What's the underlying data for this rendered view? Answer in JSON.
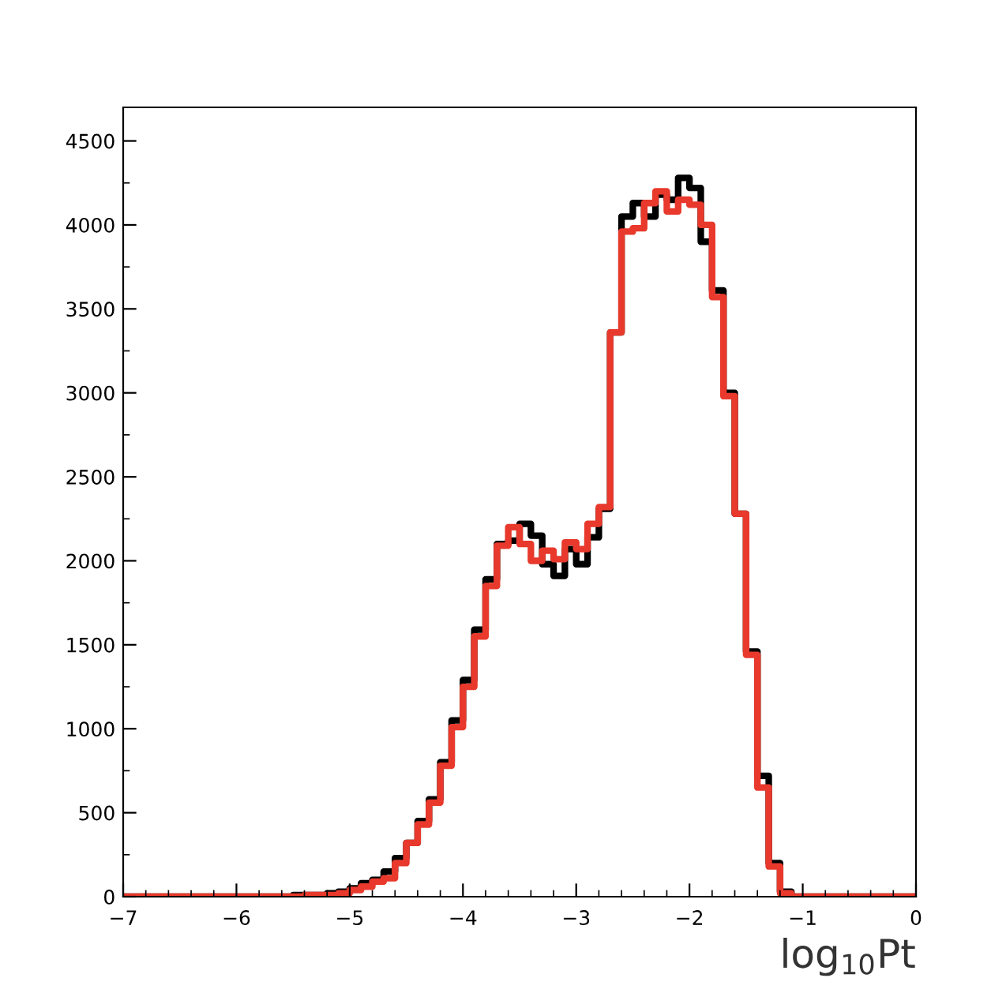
{
  "chart_data": {
    "type": "histogram",
    "xlabel": "log$_{10}$Pt",
    "bins": [
      -7.0,
      -6.9,
      -6.8,
      -6.7,
      -6.6,
      -6.5,
      -6.4,
      -6.3,
      -6.2,
      -6.1,
      -6.0,
      -5.9,
      -5.8,
      -5.7,
      -5.6,
      -5.5,
      -5.4,
      -5.3,
      -5.2,
      -5.1,
      -5.0,
      -4.9,
      -4.8,
      -4.7,
      -4.6,
      -4.5,
      -4.4,
      -4.3,
      -4.2,
      -4.1,
      -4.0,
      -3.9,
      -3.8,
      -3.7,
      -3.6,
      -3.5,
      -3.4,
      -3.3,
      -3.2,
      -3.1,
      -3.0,
      -2.9,
      -2.8,
      -2.7,
      -2.6,
      -2.5,
      -2.4,
      -2.3,
      -2.2,
      -2.1,
      -2.0,
      -1.9,
      -1.8,
      -1.7,
      -1.6,
      -1.5,
      -1.4,
      -1.3,
      -1.2,
      -1.1,
      -1.0,
      -0.9,
      -0.8,
      -0.7,
      -0.6,
      -0.5,
      -0.4,
      -0.3,
      -0.2,
      -0.1,
      0.0
    ],
    "series": [
      {
        "color": "#000000",
        "values": [
          0,
          0,
          0,
          0,
          0,
          0,
          0,
          0,
          0,
          0,
          0,
          0,
          0,
          0,
          0,
          10,
          10,
          10,
          20,
          30,
          50,
          80,
          100,
          150,
          230,
          320,
          450,
          580,
          800,
          1050,
          1290,
          1590,
          1890,
          2100,
          2120,
          2220,
          2150,
          1980,
          1910,
          2070,
          1980,
          2140,
          2310,
          3360,
          4050,
          4130,
          4050,
          4180,
          4150,
          4280,
          4220,
          3900,
          3610,
          3000,
          2280,
          1460,
          720,
          200,
          30,
          0,
          0,
          0,
          0,
          0,
          0,
          0,
          0,
          0,
          0,
          0
        ]
      },
      {
        "color": "#e8392c",
        "values": [
          0,
          0,
          0,
          0,
          0,
          0,
          0,
          0,
          0,
          0,
          0,
          0,
          0,
          0,
          0,
          0,
          10,
          10,
          10,
          20,
          40,
          60,
          90,
          110,
          200,
          320,
          430,
          560,
          780,
          1010,
          1250,
          1550,
          1850,
          2090,
          2200,
          2100,
          2000,
          2060,
          2010,
          2110,
          2070,
          2220,
          2320,
          3360,
          3960,
          3980,
          4130,
          4200,
          4080,
          4150,
          4120,
          4000,
          3570,
          2980,
          2280,
          1440,
          650,
          180,
          20,
          0,
          0,
          0,
          0,
          0,
          0,
          0,
          0,
          0,
          0,
          0
        ]
      }
    ],
    "xlim": [
      -7,
      0
    ],
    "xticks": [
      -7,
      -6,
      -5,
      -4,
      -3,
      -2,
      -1,
      0
    ],
    "ylim": [
      0,
      4700
    ],
    "yticks": [
      0,
      500,
      1000,
      1500,
      2000,
      2500,
      3000,
      3500,
      4000,
      4500
    ],
    "grid": false
  }
}
